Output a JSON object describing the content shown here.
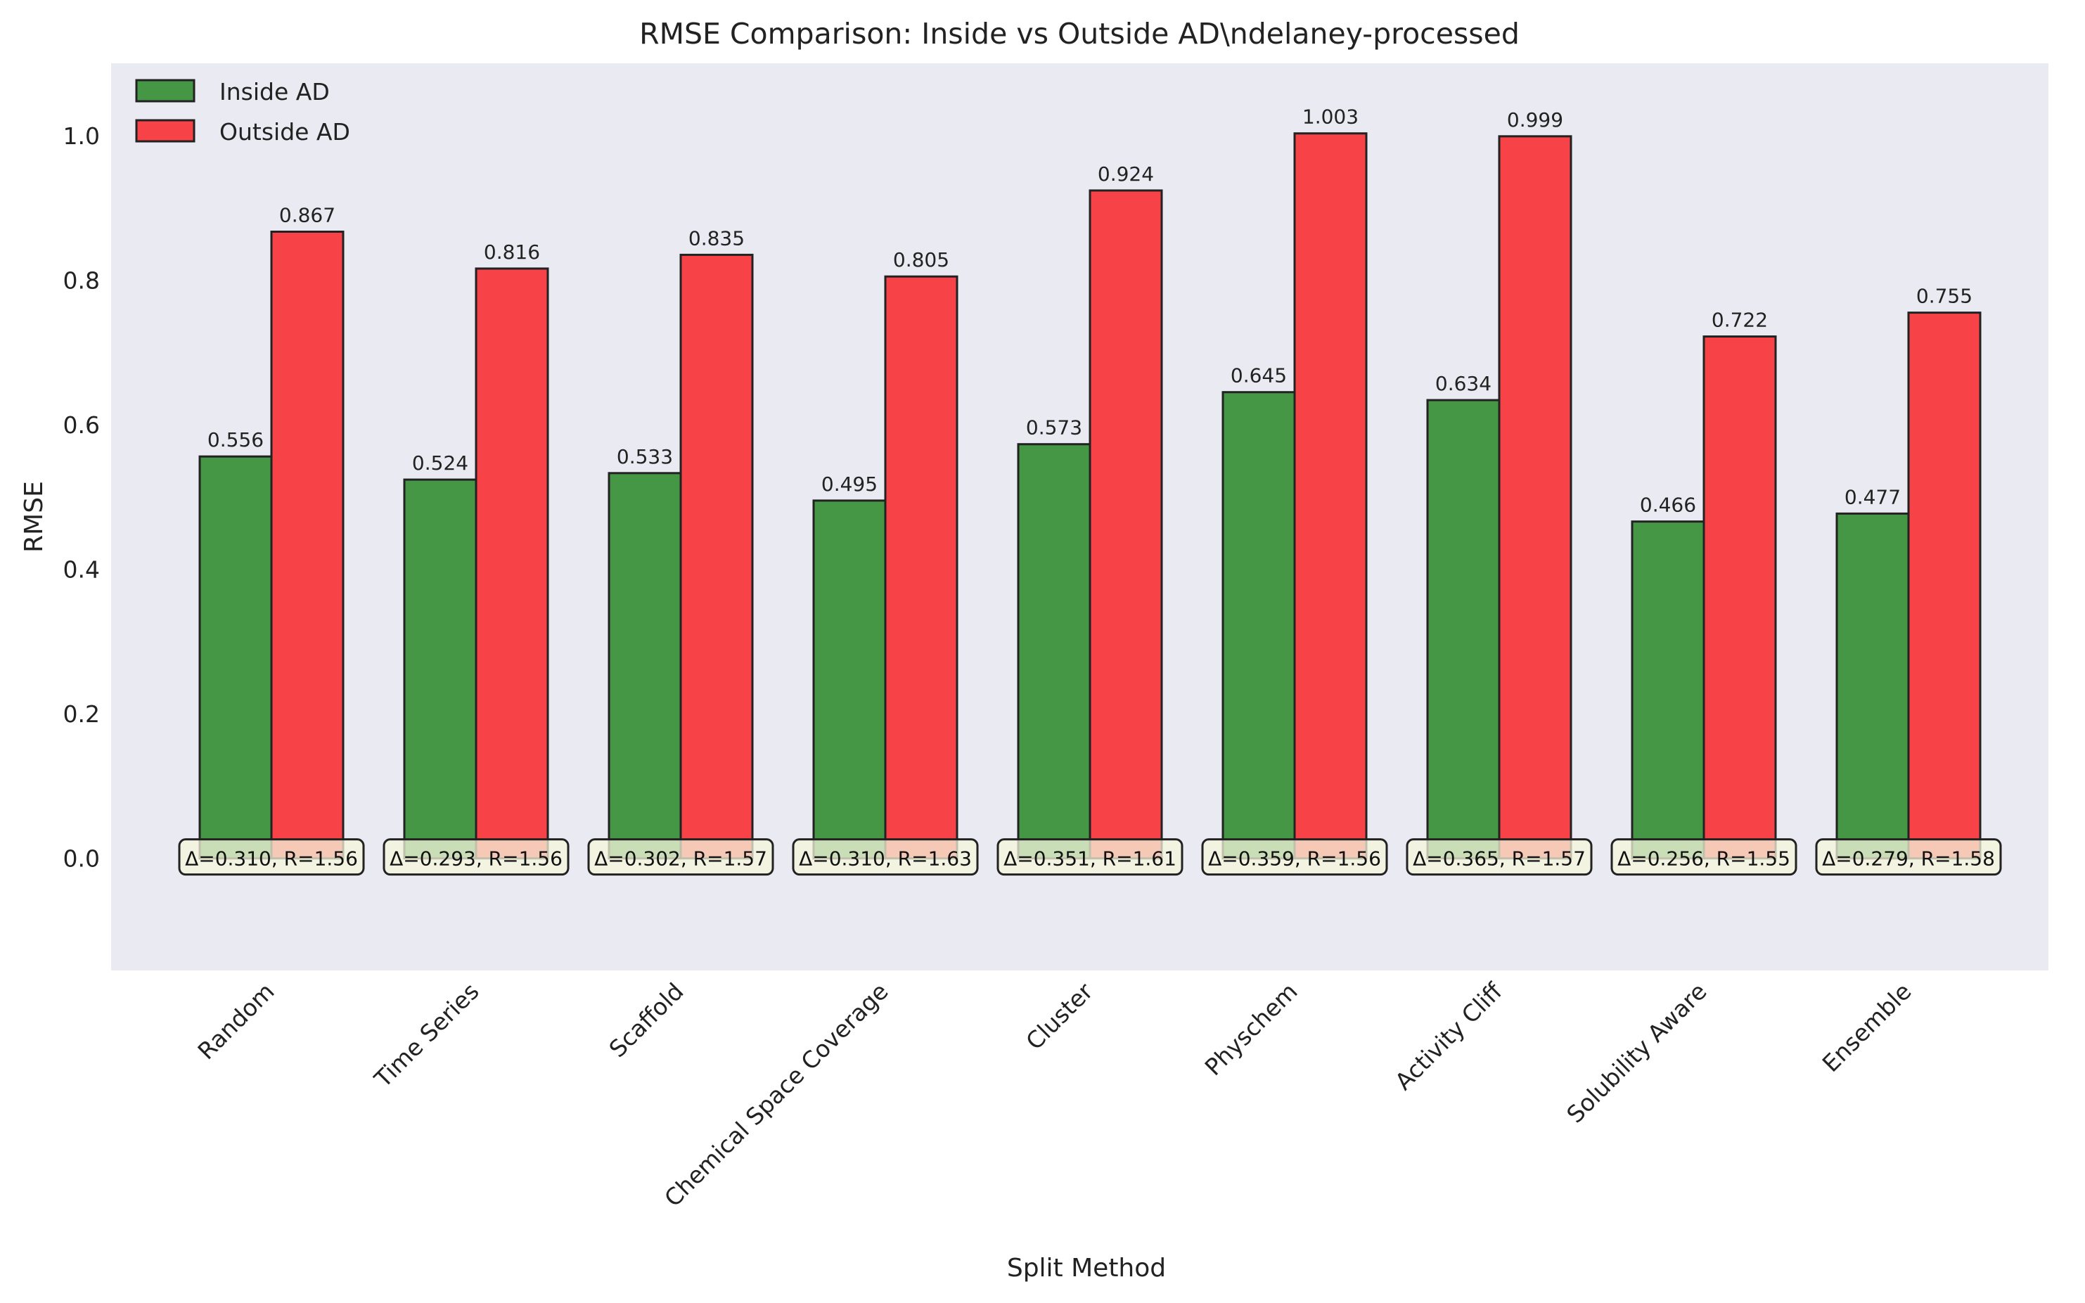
{
  "chart_data": {
    "type": "bar",
    "title": "RMSE Comparison: Inside vs Outside AD\\ndelaney-processed",
    "xlabel": "Split Method",
    "ylabel": "RMSE",
    "ylim": [
      -0.155,
      1.1
    ],
    "yticks": [
      "0.0",
      "0.2",
      "0.4",
      "0.6",
      "0.8",
      "1.0"
    ],
    "grid": false,
    "legend_position": "top-left",
    "categories": [
      "Random",
      "Time Series",
      "Scaffold",
      "Chemical Space Coverage",
      "Cluster",
      "Physchem",
      "Activity Cliff",
      "Solubility Aware",
      "Ensemble"
    ],
    "series": [
      {
        "name": "Inside AD",
        "color": "#2e8b2e",
        "values": [
          0.556,
          0.524,
          0.533,
          0.495,
          0.573,
          0.645,
          0.634,
          0.466,
          0.477
        ]
      },
      {
        "name": "Outside AD",
        "color": "#f83a3e",
        "values": [
          0.867,
          0.816,
          0.835,
          0.805,
          0.924,
          1.003,
          0.999,
          0.722,
          0.755
        ]
      }
    ],
    "value_labels": {
      "inside": [
        "0.556",
        "0.524",
        "0.533",
        "0.495",
        "0.573",
        "0.645",
        "0.634",
        "0.466",
        "0.477"
      ],
      "outside": [
        "0.867",
        "0.816",
        "0.835",
        "0.805",
        "0.924",
        "1.003",
        "0.999",
        "0.722",
        "0.755"
      ]
    },
    "annotations": [
      "Δ=0.310, R=1.56",
      "Δ=0.293, R=1.56",
      "Δ=0.302, R=1.57",
      "Δ=0.310, R=1.63",
      "Δ=0.351, R=1.61",
      "Δ=0.359, R=1.56",
      "Δ=0.365, R=1.57",
      "Δ=0.256, R=1.55",
      "Δ=0.279, R=1.58"
    ],
    "plot_background": "#eaeaf2",
    "annotation_background": "#f5f5dc"
  }
}
